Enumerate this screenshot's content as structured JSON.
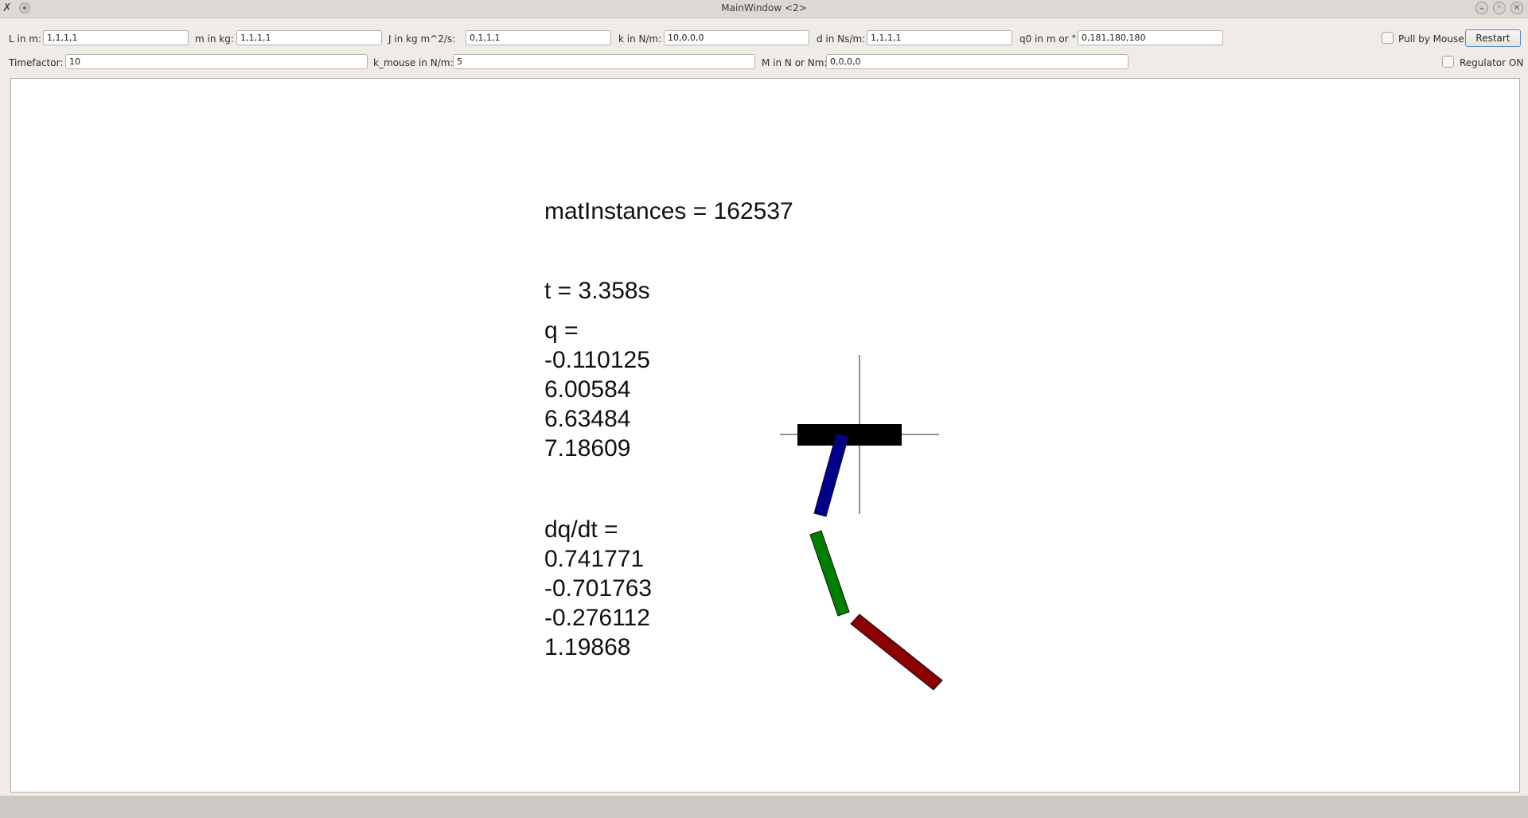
{
  "window": {
    "title": "MainWindow <2>",
    "app_icon": "app-x-icon",
    "controls": [
      "minimize-icon",
      "maximize-icon",
      "close-icon"
    ]
  },
  "params_row1": {
    "L_label": "L in m:",
    "L_value": "1,1,1,1",
    "m_label": "m in kg:",
    "m_value": "1,1,1,1",
    "J_label": "J in kg m^2/s:",
    "J_value": "0,1,1,1",
    "k_label": "k in N/m:",
    "k_value": "10,0,0,0",
    "d_label": "d in Ns/m:",
    "d_value": "1,1,1,1",
    "q0_label": "q0 in m or °:",
    "q0_value": "0,181,180,180",
    "pull_by_mouse_label": "Pull by Mouse",
    "pull_by_mouse_checked": false,
    "restart_label": "Restart"
  },
  "params_row2": {
    "timefactor_label": "Timefactor:",
    "timefactor_value": "10",
    "kmouse_label": "k_mouse in N/m:",
    "kmouse_value": "5",
    "M_label": "M in N or Nm:",
    "M_value": "0,0,0,0",
    "regulator_label": "Regulator ON",
    "regulator_checked": false
  },
  "simulation": {
    "mat_instances": "matInstances = 162537",
    "time": "t = 3.358s",
    "q_header": "q =",
    "q": [
      "-0.110125",
      "6.00584",
      "6.63484",
      "7.18609"
    ],
    "dq_header": "dq/dt =",
    "dq": [
      "0.741771",
      "-0.701763",
      "-0.276112",
      "1.19868"
    ]
  },
  "pendulum": {
    "cart_color": "#000000",
    "link_colors": [
      "#00008b",
      "#008000",
      "#8b0000"
    ],
    "crosshair_color": "#555555"
  }
}
